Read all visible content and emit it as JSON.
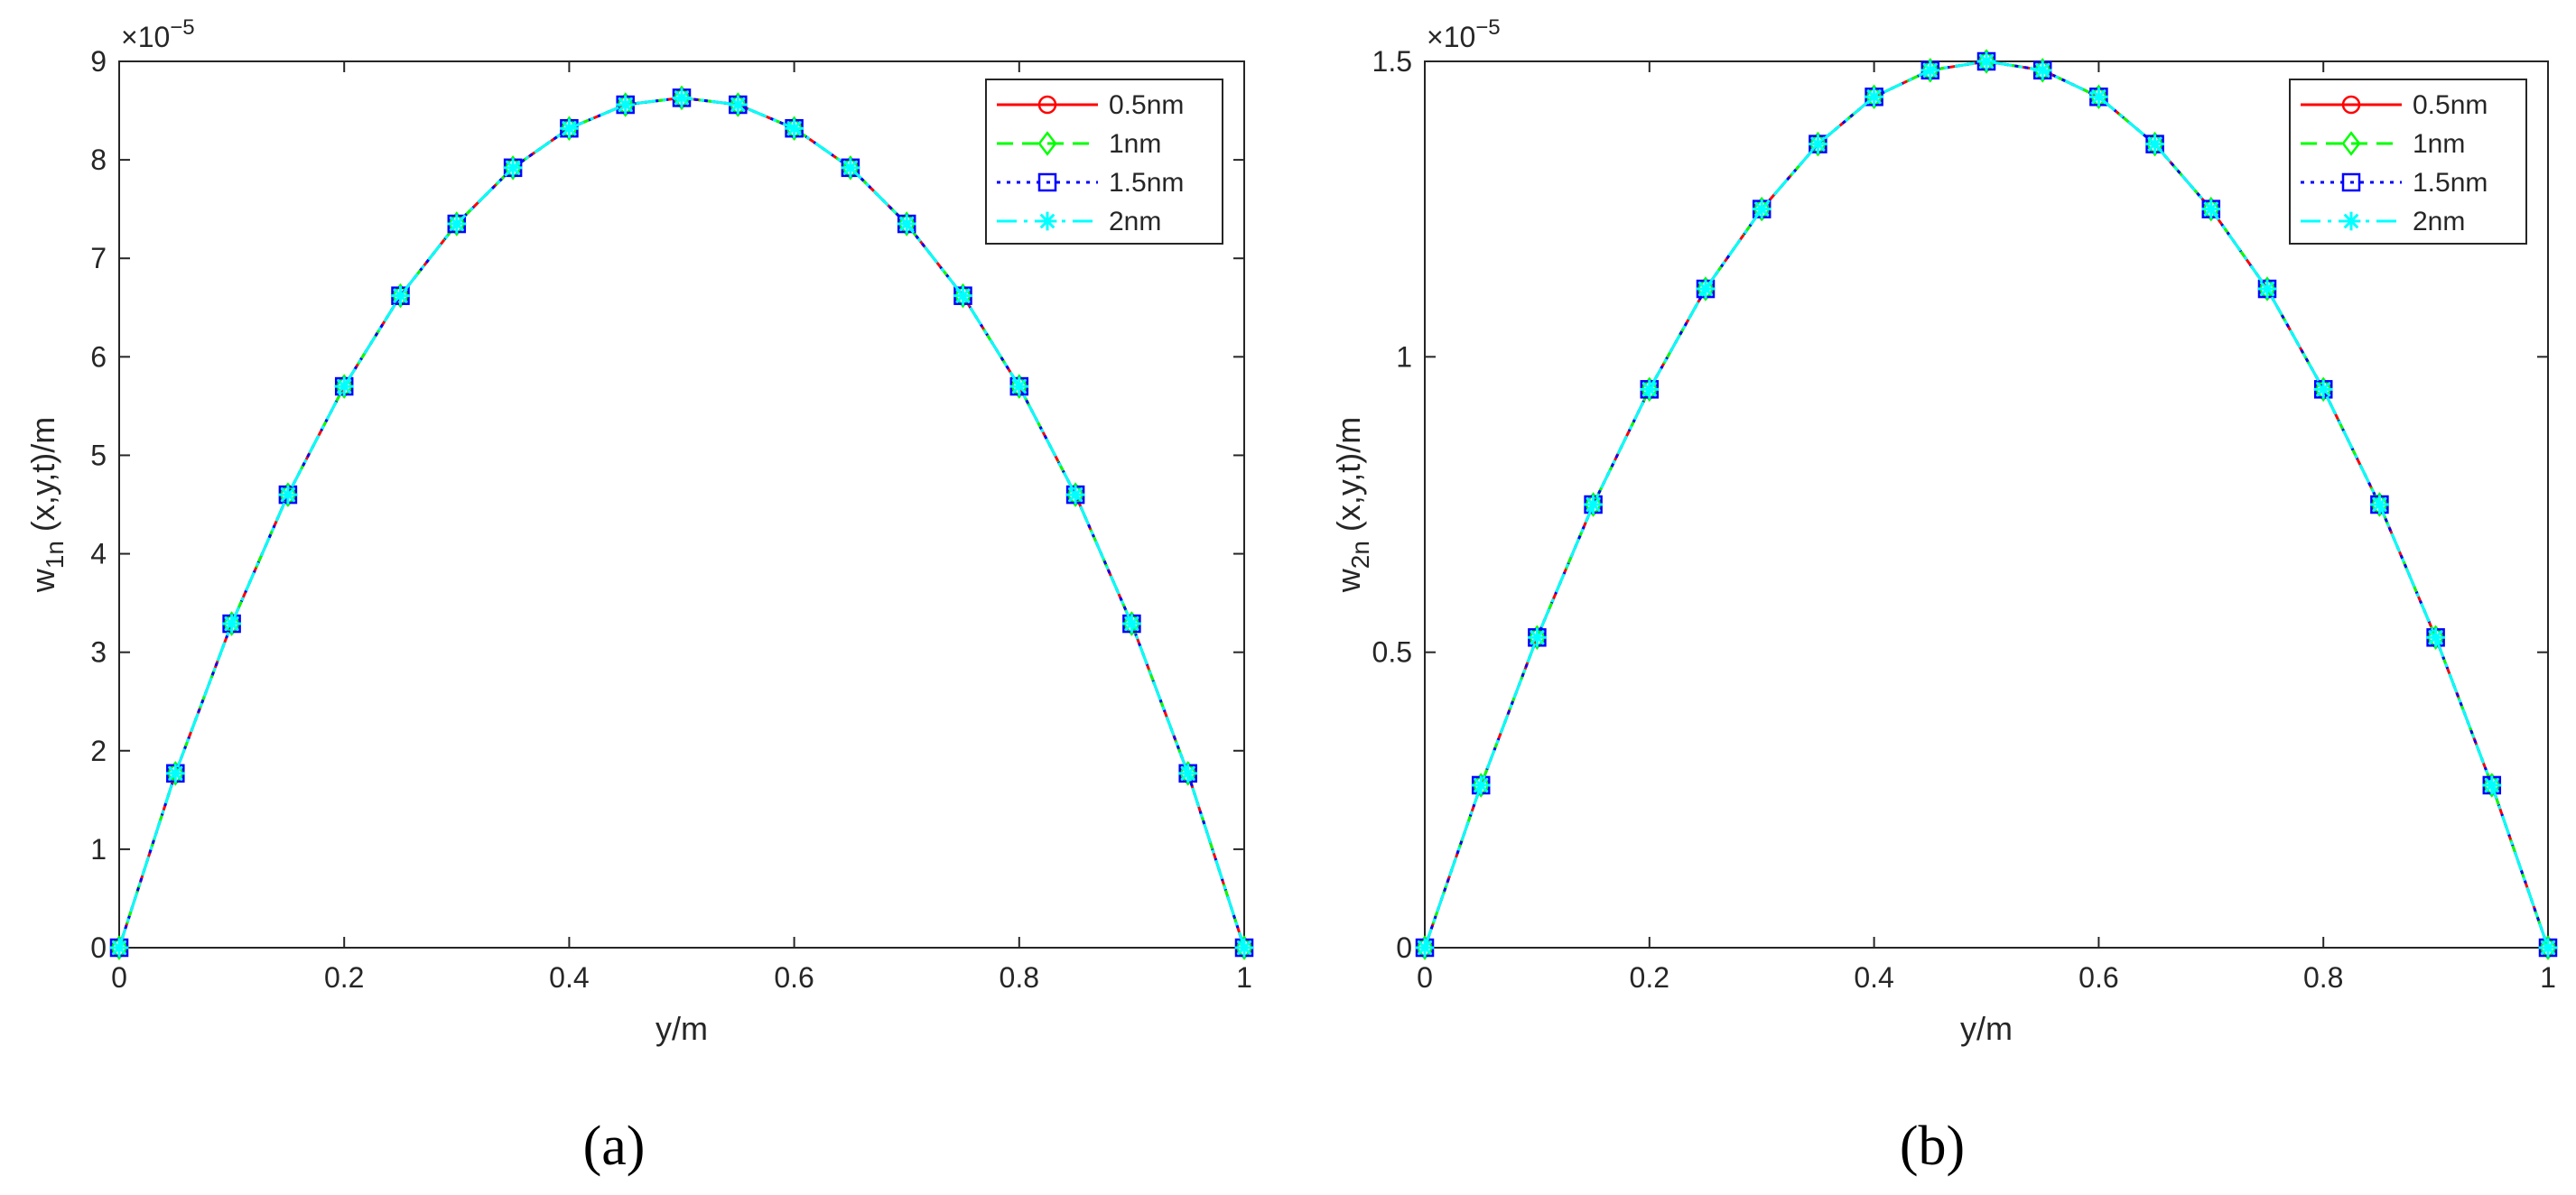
{
  "chart_data": [
    {
      "type": "line",
      "panel_label": "(a)",
      "xlabel": "y/m",
      "ylabel": "w",
      "ylabel_sub": "1n",
      "ylabel_rest": " (x,y,t)/m",
      "y_multiplier": "×10",
      "y_exponent": "−5",
      "xlim": [
        0,
        1
      ],
      "ylim": [
        0,
        9
      ],
      "xticks": [
        0,
        0.2,
        0.4,
        0.6,
        0.8,
        1
      ],
      "xtick_labels": [
        "0",
        "0.2",
        "0.4",
        "0.6",
        "0.8",
        "1"
      ],
      "yticks": [
        0,
        1,
        2,
        3,
        4,
        5,
        6,
        7,
        8,
        9
      ],
      "ytick_labels": [
        "0",
        "1",
        "2",
        "3",
        "4",
        "5",
        "6",
        "7",
        "8",
        "9"
      ],
      "grid": false,
      "legend_position": "top-right",
      "x": [
        0,
        0.05,
        0.1,
        0.15,
        0.2,
        0.25,
        0.3,
        0.35,
        0.4,
        0.45,
        0.5,
        0.55,
        0.6,
        0.65,
        0.7,
        0.75,
        0.8,
        0.85,
        0.9,
        0.95,
        1
      ],
      "series": [
        {
          "name": "0.5nm",
          "color": "#ff0000",
          "line_style": "solid",
          "marker": "circle",
          "values": [
            0,
            1.77,
            3.29,
            4.6,
            5.7,
            6.62,
            7.35,
            7.92,
            8.32,
            8.56,
            8.63,
            8.56,
            8.32,
            7.92,
            7.35,
            6.62,
            5.7,
            4.6,
            3.29,
            1.77,
            0
          ]
        },
        {
          "name": "1nm",
          "color": "#00ff00",
          "line_style": "dashed",
          "marker": "diamond",
          "values": [
            0,
            1.77,
            3.29,
            4.6,
            5.7,
            6.62,
            7.35,
            7.92,
            8.32,
            8.56,
            8.63,
            8.56,
            8.32,
            7.92,
            7.35,
            6.62,
            5.7,
            4.6,
            3.29,
            1.77,
            0
          ]
        },
        {
          "name": "1.5nm",
          "color": "#0000ff",
          "line_style": "dotted",
          "marker": "square",
          "values": [
            0,
            1.77,
            3.29,
            4.6,
            5.7,
            6.62,
            7.35,
            7.92,
            8.32,
            8.56,
            8.63,
            8.56,
            8.32,
            7.92,
            7.35,
            6.62,
            5.7,
            4.6,
            3.29,
            1.77,
            0
          ]
        },
        {
          "name": "2nm",
          "color": "#00ffff",
          "line_style": "dashdot",
          "marker": "asterisk",
          "values": [
            0,
            1.77,
            3.29,
            4.6,
            5.7,
            6.62,
            7.35,
            7.92,
            8.32,
            8.56,
            8.63,
            8.56,
            8.32,
            7.92,
            7.35,
            6.62,
            5.7,
            4.6,
            3.29,
            1.77,
            0
          ]
        }
      ]
    },
    {
      "type": "line",
      "panel_label": "(b)",
      "xlabel": "y/m",
      "ylabel": "w",
      "ylabel_sub": "2n",
      "ylabel_rest": " (x,y,t)/m",
      "y_multiplier": "×10",
      "y_exponent": "−5",
      "xlim": [
        0,
        1
      ],
      "ylim": [
        0,
        1.5
      ],
      "xticks": [
        0,
        0.2,
        0.4,
        0.6,
        0.8,
        1
      ],
      "xtick_labels": [
        "0",
        "0.2",
        "0.4",
        "0.6",
        "0.8",
        "1"
      ],
      "yticks": [
        0,
        0.5,
        1,
        1.5
      ],
      "ytick_labels": [
        "0",
        "0.5",
        "1",
        "1.5"
      ],
      "grid": false,
      "legend_position": "top-right",
      "x": [
        0,
        0.05,
        0.1,
        0.15,
        0.2,
        0.25,
        0.3,
        0.35,
        0.4,
        0.45,
        0.5,
        0.55,
        0.6,
        0.65,
        0.7,
        0.75,
        0.8,
        0.85,
        0.9,
        0.95,
        1
      ],
      "series": [
        {
          "name": "0.5nm",
          "color": "#ff0000",
          "line_style": "solid",
          "marker": "circle",
          "values": [
            0,
            0.275,
            0.525,
            0.75,
            0.945,
            1.115,
            1.25,
            1.36,
            1.44,
            1.485,
            1.5,
            1.485,
            1.44,
            1.36,
            1.25,
            1.115,
            0.945,
            0.75,
            0.525,
            0.275,
            0
          ]
        },
        {
          "name": "1nm",
          "color": "#00ff00",
          "line_style": "dashed",
          "marker": "diamond",
          "values": [
            0,
            0.275,
            0.525,
            0.75,
            0.945,
            1.115,
            1.25,
            1.36,
            1.44,
            1.485,
            1.5,
            1.485,
            1.44,
            1.36,
            1.25,
            1.115,
            0.945,
            0.75,
            0.525,
            0.275,
            0
          ]
        },
        {
          "name": "1.5nm",
          "color": "#0000ff",
          "line_style": "dotted",
          "marker": "square",
          "values": [
            0,
            0.275,
            0.525,
            0.75,
            0.945,
            1.115,
            1.25,
            1.36,
            1.44,
            1.485,
            1.5,
            1.485,
            1.44,
            1.36,
            1.25,
            1.115,
            0.945,
            0.75,
            0.525,
            0.275,
            0
          ]
        },
        {
          "name": "2nm",
          "color": "#00ffff",
          "line_style": "dashdot",
          "marker": "asterisk",
          "values": [
            0,
            0.275,
            0.525,
            0.75,
            0.945,
            1.115,
            1.25,
            1.36,
            1.44,
            1.485,
            1.5,
            1.485,
            1.44,
            1.36,
            1.25,
            1.115,
            0.945,
            0.75,
            0.525,
            0.275,
            0
          ]
        }
      ]
    }
  ]
}
